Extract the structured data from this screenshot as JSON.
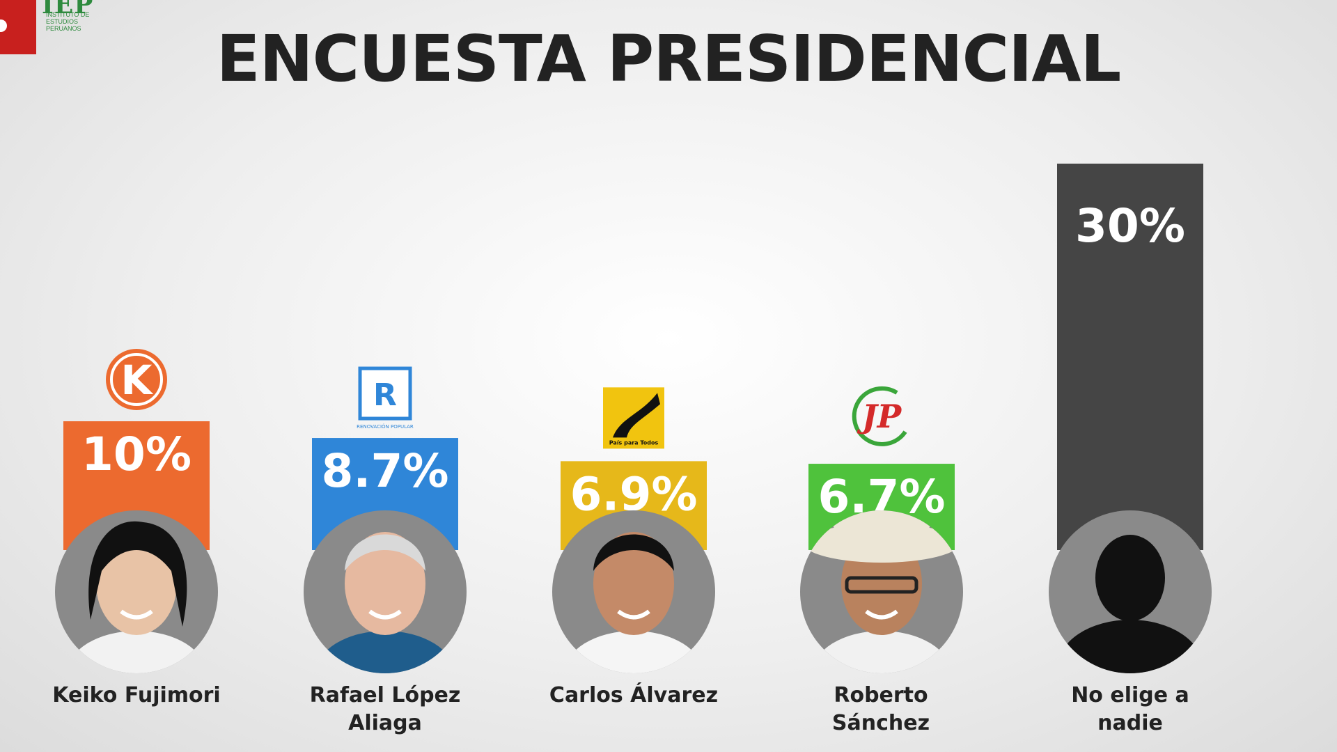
{
  "header": {
    "title": "ENCUESTA PRESIDENCIAL",
    "logo_text": "IEP",
    "logo_subtext": "INSTITUTO DE ESTUDIOS PERUANOS"
  },
  "chart_data": {
    "type": "bar",
    "title": "ENCUESTA PRESIDENCIAL",
    "categories": [
      "Keiko Fujimori",
      "Rafael López Aliaga",
      "Carlos Álvarez",
      "Roberto Sánchez",
      "No elige a nadie"
    ],
    "value_labels": [
      "10%",
      "8.7%",
      "6.9%",
      "6.7%",
      "30%"
    ],
    "values": [
      10,
      8.7,
      6.9,
      6.7,
      30
    ],
    "colors": [
      "#ec6a2f",
      "#2f86d8",
      "#e6b81a",
      "#4fc23c",
      "#454545"
    ],
    "party_icons": [
      "fuerza-popular-logo-icon",
      "renovacion-popular-logo-icon",
      "pais-para-todos-logo-icon",
      "juntos-por-el-peru-logo-icon",
      ""
    ],
    "avatars": [
      "photo-keiko-fujimori",
      "photo-rafael-lopez-aliaga",
      "photo-carlos-alvarez",
      "photo-roberto-sanchez",
      "silhouette-icon"
    ],
    "party_texts": [
      "K",
      "R",
      "",
      "JP",
      ""
    ],
    "party_subtexts": [
      "",
      "RENOVACIÓN POPULAR",
      "País para Todos",
      "",
      ""
    ],
    "xlabel": "",
    "ylabel": "",
    "ylim": [
      0,
      30
    ],
    "grid": false
  },
  "names": {
    "c0": "Keiko Fujimori",
    "c1": "Rafael López\nAliaga",
    "c2": "Carlos Álvarez",
    "c3": "Roberto Sánchez",
    "c4": "No elige a\nnadie"
  }
}
